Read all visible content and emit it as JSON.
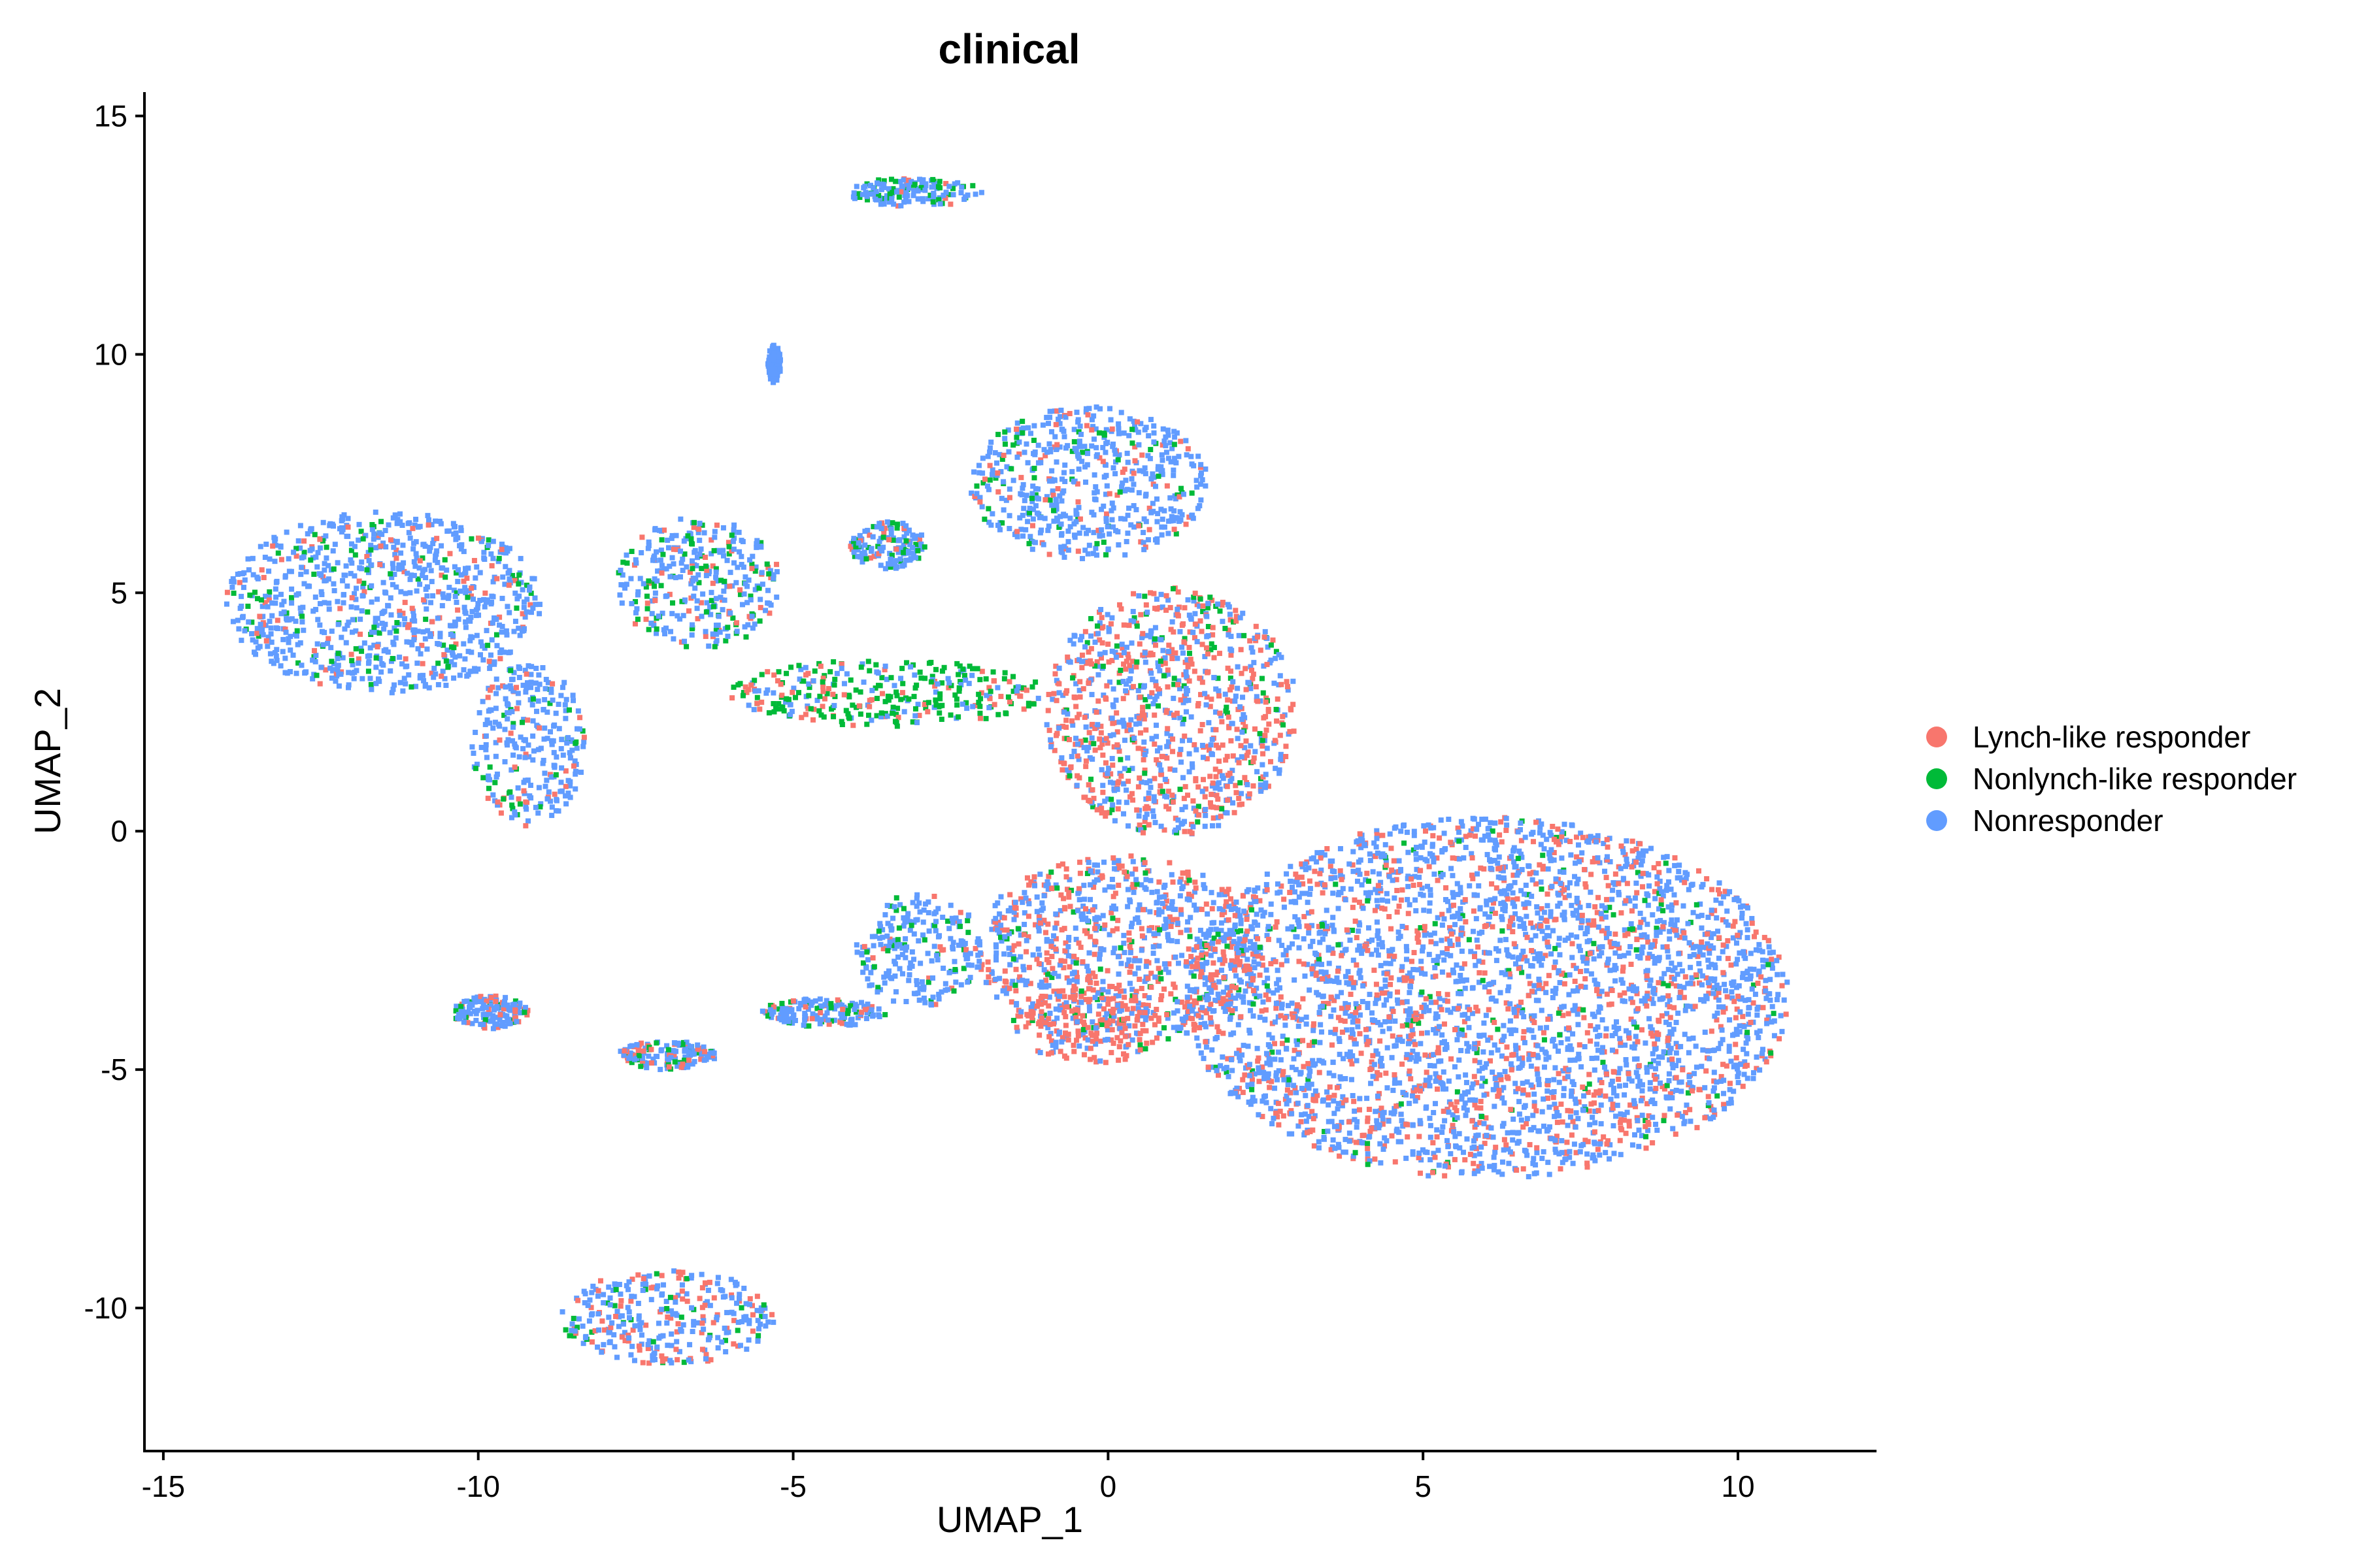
{
  "chart_data": {
    "type": "scatter",
    "title": "clinical",
    "xlabel": "UMAP_1",
    "ylabel": "UMAP_2",
    "xlim": [
      -15.3,
      12.2
    ],
    "ylim": [
      -13.0,
      15.5
    ],
    "xticks": [
      -15,
      -10,
      -5,
      0,
      5,
      10
    ],
    "yticks": [
      -10,
      -5,
      0,
      5,
      10,
      15
    ],
    "grid": false,
    "legend_position": "right",
    "series": [
      {
        "name": "Lynch-like responder",
        "color": "#F8766D"
      },
      {
        "name": "Nonlynch-like responder",
        "color": "#00BA38"
      },
      {
        "name": "Nonresponder",
        "color": "#619CFF"
      }
    ],
    "clusters": [
      {
        "center": [
          6.0,
          -3.5
        ],
        "radius": [
          4.8,
          3.8
        ],
        "mix": [
          0.3,
          0.05,
          0.65
        ]
      },
      {
        "center": [
          -0.3,
          7.3
        ],
        "radius": [
          1.9,
          1.6
        ],
        "mix": [
          0.1,
          0.1,
          0.8
        ]
      },
      {
        "center": [
          -3.5,
          6.0
        ],
        "radius": [
          0.6,
          0.5
        ],
        "mix": [
          0.1,
          0.15,
          0.75
        ]
      },
      {
        "center": [
          1.0,
          2.5
        ],
        "radius": [
          2.0,
          2.6
        ],
        "mix": [
          0.45,
          0.1,
          0.45
        ]
      },
      {
        "center": [
          0.2,
          -2.5
        ],
        "radius": [
          2.3,
          2.0
        ],
        "mix": [
          0.4,
          0.07,
          0.53
        ]
      },
      {
        "center": [
          -0.3,
          -4.0
        ],
        "radius": [
          1.2,
          0.9
        ],
        "mix": [
          0.7,
          0.1,
          0.2
        ]
      },
      {
        "center": [
          -11.5,
          4.8
        ],
        "radius": [
          2.5,
          1.9
        ],
        "mix": [
          0.12,
          0.1,
          0.78
        ]
      },
      {
        "center": [
          -6.5,
          5.2
        ],
        "radius": [
          1.3,
          1.4
        ],
        "mix": [
          0.15,
          0.2,
          0.65
        ]
      },
      {
        "center": [
          -9.2,
          1.8
        ],
        "radius": [
          0.9,
          1.7
        ],
        "mix": [
          0.1,
          0.1,
          0.8
        ]
      },
      {
        "center": [
          -7.0,
          -10.2
        ],
        "radius": [
          1.7,
          1.0
        ],
        "mix": [
          0.3,
          0.08,
          0.62
        ]
      },
      {
        "center": [
          -3.1,
          13.4
        ],
        "radius": [
          1.1,
          0.3
        ],
        "mix": [
          0.05,
          0.3,
          0.65
        ]
      },
      {
        "center": [
          -3.5,
          2.9
        ],
        "radius": [
          2.5,
          0.7
        ],
        "mix": [
          0.2,
          0.55,
          0.25
        ]
      },
      {
        "center": [
          -3.0,
          -2.5
        ],
        "radius": [
          1.0,
          1.2
        ],
        "mix": [
          0.05,
          0.15,
          0.8
        ]
      },
      {
        "center": [
          -7.0,
          -4.7
        ],
        "radius": [
          0.8,
          0.3
        ],
        "mix": [
          0.2,
          0.1,
          0.7
        ]
      },
      {
        "center": [
          -9.8,
          -3.8
        ],
        "radius": [
          0.6,
          0.35
        ],
        "mix": [
          0.15,
          0.1,
          0.75
        ]
      },
      {
        "center": [
          -4.5,
          -3.8
        ],
        "radius": [
          1.0,
          0.3
        ],
        "mix": [
          0.1,
          0.15,
          0.75
        ]
      },
      {
        "center": [
          -5.3,
          9.8
        ],
        "radius": [
          0.1,
          0.4
        ],
        "mix": [
          0.0,
          0.0,
          1.0
        ]
      }
    ]
  }
}
